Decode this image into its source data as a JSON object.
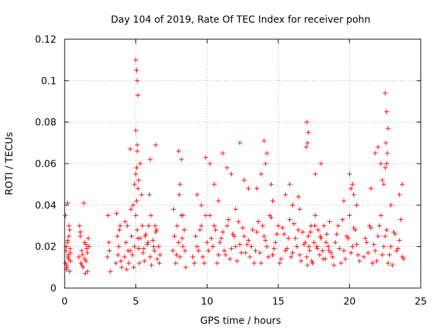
{
  "chart_data": {
    "type": "scatter",
    "title": "Day 104 of 2019, Rate Of TEC Index for receiver pohn",
    "xlabel": "GPS time / hours",
    "ylabel": "ROTI / TECUs",
    "xlim": [
      0,
      25
    ],
    "ylim": [
      0,
      0.12
    ],
    "grid": true,
    "marker": "plus",
    "marker_color": "#ff0000",
    "x_ticks": [
      0,
      5,
      10,
      15,
      20,
      25
    ],
    "x_tick_labels": [
      "0",
      "5",
      "10",
      "15",
      "20",
      "25"
    ],
    "y_ticks": [
      0,
      0.02,
      0.04,
      0.06,
      0.08,
      0.1,
      0.12
    ],
    "y_tick_labels": [
      "0",
      "0.02",
      "0.04",
      "0.06",
      "0.08",
      "0.1",
      "0.12"
    ],
    "series": [
      {
        "name": "ROTI",
        "x": [
          0.05,
          0.1,
          0.15,
          0.2,
          0.25,
          0.3,
          0.35,
          0.4,
          0.1,
          0.2,
          0.3,
          0.4,
          0.05,
          0.15,
          0.25,
          0.35,
          0.12,
          0.28,
          0.38,
          0.22,
          1.0,
          1.1,
          1.2,
          1.3,
          1.4,
          1.5,
          1.6,
          1.7,
          1.05,
          1.15,
          1.25,
          1.35,
          1.45,
          1.55,
          1.65,
          1.2,
          1.4,
          1.6,
          1.1,
          1.5,
          3.0,
          3.1,
          3.2,
          3.05,
          3.15,
          3.6,
          3.7,
          3.8,
          3.9,
          4.0,
          3.65,
          3.75,
          3.85,
          3.95,
          4.2,
          4.3,
          4.4,
          4.5,
          4.6,
          4.7,
          4.8,
          4.9,
          5.0,
          5.1,
          5.2,
          5.3,
          5.4,
          5.5,
          5.6,
          5.7,
          5.8,
          5.9,
          6.0,
          6.1,
          6.2,
          6.3,
          6.4,
          6.5,
          6.6,
          6.7,
          4.25,
          4.45,
          4.65,
          4.85,
          5.05,
          5.25,
          5.45,
          5.65,
          5.85,
          6.05,
          6.25,
          6.45,
          6.65,
          4.35,
          4.75,
          5.15,
          5.55,
          5.95,
          6.35,
          5.0,
          5.05,
          5.1,
          5.15,
          5.0,
          5.1,
          5.05,
          5.0,
          5.1,
          4.9,
          5.2,
          5.15,
          4.6,
          5.3,
          6.0,
          6.4,
          7.6,
          7.7,
          7.8,
          7.9,
          8.0,
          8.1,
          8.2,
          8.3,
          8.4,
          8.5,
          7.65,
          7.85,
          8.05,
          8.25,
          8.45,
          8.0,
          8.2,
          8.1,
          8.3,
          9.0,
          9.2,
          9.4,
          9.6,
          9.8,
          10.0,
          10.2,
          10.4,
          10.6,
          10.8,
          11.0,
          11.2,
          11.4,
          11.6,
          11.8,
          12.0,
          12.2,
          12.4,
          12.6,
          12.8,
          9.1,
          9.3,
          9.5,
          9.7,
          9.9,
          10.1,
          10.3,
          10.5,
          10.7,
          10.9,
          11.1,
          11.3,
          11.5,
          11.7,
          11.9,
          12.1,
          12.3,
          12.5,
          12.7,
          12.9,
          9.3,
          9.9,
          10.5,
          11.1,
          11.7,
          12.3,
          12.9,
          9.6,
          10.2,
          10.8,
          11.4,
          12.0,
          12.6,
          13.0,
          13.2,
          13.4,
          13.6,
          13.8,
          14.0,
          14.2,
          14.4,
          14.6,
          14.8,
          15.0,
          15.2,
          15.4,
          15.6,
          15.8,
          16.0,
          16.2,
          16.4,
          16.6,
          16.8,
          13.1,
          13.3,
          13.5,
          13.7,
          13.9,
          14.1,
          14.3,
          14.5,
          14.7,
          14.9,
          15.1,
          15.3,
          15.5,
          15.7,
          15.9,
          16.1,
          16.3,
          16.5,
          16.7,
          16.9,
          13.5,
          14.0,
          14.1,
          14.2,
          14.5,
          15.5,
          16.0,
          16.5,
          13.8,
          14.6,
          15.8,
          16.4,
          17.0,
          17.1,
          17.2,
          17.3,
          17.4,
          17.5,
          17.6,
          17.7,
          17.8,
          17.9,
          18.0,
          18.1,
          18.2,
          18.3,
          18.4,
          18.5,
          18.6,
          18.7,
          17.05,
          17.15,
          17.25,
          17.35,
          17.55,
          17.75,
          17.95,
          18.15,
          18.35,
          18.55,
          17.0,
          17.1,
          17.05,
          16.95,
          17.6,
          18.0,
          18.8,
          19.0,
          19.2,
          19.4,
          19.6,
          19.8,
          20.0,
          20.2,
          20.4,
          20.6,
          18.9,
          19.1,
          19.3,
          19.5,
          19.7,
          19.9,
          20.1,
          20.3,
          20.5,
          20.7,
          20.0,
          20.2,
          20.3,
          20.1,
          19.6,
          20.5,
          21.0,
          21.2,
          21.4,
          21.6,
          21.8,
          22.0,
          22.2,
          22.4,
          22.6,
          22.8,
          23.0,
          23.2,
          23.4,
          23.6,
          23.8,
          21.1,
          21.3,
          21.5,
          21.7,
          21.9,
          22.1,
          22.3,
          22.5,
          22.7,
          22.9,
          23.1,
          23.3,
          23.5,
          23.7,
          22.5,
          22.6,
          22.7,
          22.55,
          22.65,
          22.6,
          22.5,
          22.2,
          22.3,
          21.8,
          22.0,
          22.4,
          23.5,
          23.7,
          21.5,
          22.9
        ],
        "y": [
          0.012,
          0.018,
          0.01,
          0.022,
          0.015,
          0.03,
          0.008,
          0.013,
          0.02,
          0.041,
          0.025,
          0.017,
          0.035,
          0.011,
          0.016,
          0.028,
          0.009,
          0.014,
          0.019,
          0.023,
          0.015,
          0.025,
          0.018,
          0.01,
          0.022,
          0.013,
          0.008,
          0.02,
          0.03,
          0.012,
          0.016,
          0.041,
          0.007,
          0.019,
          0.024,
          0.011,
          0.014,
          0.017,
          0.027,
          0.021,
          0.015,
          0.022,
          0.008,
          0.035,
          0.018,
          0.012,
          0.025,
          0.02,
          0.03,
          0.01,
          0.036,
          0.016,
          0.028,
          0.013,
          0.015,
          0.022,
          0.03,
          0.012,
          0.018,
          0.025,
          0.04,
          0.02,
          0.035,
          0.028,
          0.019,
          0.024,
          0.045,
          0.017,
          0.013,
          0.026,
          0.021,
          0.03,
          0.015,
          0.011,
          0.023,
          0.018,
          0.027,
          0.014,
          0.02,
          0.016,
          0.032,
          0.018,
          0.038,
          0.01,
          0.042,
          0.012,
          0.03,
          0.025,
          0.022,
          0.035,
          0.02,
          0.028,
          0.012,
          0.009,
          0.016,
          0.024,
          0.019,
          0.045,
          0.03,
          0.11,
          0.105,
          0.1,
          0.093,
          0.076,
          0.069,
          0.058,
          0.055,
          0.066,
          0.05,
          0.052,
          0.048,
          0.067,
          0.06,
          0.062,
          0.069,
          0.018,
          0.025,
          0.012,
          0.03,
          0.022,
          0.015,
          0.035,
          0.02,
          0.028,
          0.01,
          0.038,
          0.016,
          0.045,
          0.024,
          0.018,
          0.066,
          0.062,
          0.05,
          0.035,
          0.015,
          0.025,
          0.018,
          0.03,
          0.012,
          0.022,
          0.035,
          0.02,
          0.028,
          0.016,
          0.024,
          0.018,
          0.03,
          0.014,
          0.026,
          0.02,
          0.032,
          0.017,
          0.025,
          0.021,
          0.012,
          0.02,
          0.028,
          0.015,
          0.035,
          0.018,
          0.024,
          0.03,
          0.012,
          0.022,
          0.027,
          0.016,
          0.033,
          0.019,
          0.025,
          0.013,
          0.021,
          0.029,
          0.017,
          0.023,
          0.045,
          0.063,
          0.05,
          0.065,
          0.055,
          0.07,
          0.048,
          0.04,
          0.06,
          0.042,
          0.058,
          0.038,
          0.052,
          0.015,
          0.028,
          0.018,
          0.032,
          0.012,
          0.025,
          0.02,
          0.035,
          0.016,
          0.022,
          0.03,
          0.014,
          0.026,
          0.019,
          0.033,
          0.017,
          0.024,
          0.028,
          0.013,
          0.021,
          0.02,
          0.012,
          0.027,
          0.017,
          0.03,
          0.023,
          0.015,
          0.034,
          0.019,
          0.026,
          0.012,
          0.029,
          0.018,
          0.024,
          0.015,
          0.031,
          0.02,
          0.016,
          0.027,
          0.022,
          0.048,
          0.071,
          0.06,
          0.065,
          0.05,
          0.045,
          0.04,
          0.038,
          0.055,
          0.042,
          0.05,
          0.044,
          0.015,
          0.025,
          0.018,
          0.03,
          0.012,
          0.022,
          0.035,
          0.02,
          0.028,
          0.016,
          0.024,
          0.018,
          0.03,
          0.014,
          0.026,
          0.02,
          0.032,
          0.017,
          0.011,
          0.02,
          0.027,
          0.013,
          0.03,
          0.019,
          0.025,
          0.014,
          0.022,
          0.018,
          0.08,
          0.075,
          0.07,
          0.068,
          0.055,
          0.06,
          0.015,
          0.022,
          0.03,
          0.012,
          0.018,
          0.025,
          0.035,
          0.02,
          0.028,
          0.016,
          0.011,
          0.026,
          0.019,
          0.033,
          0.014,
          0.024,
          0.017,
          0.029,
          0.021,
          0.013,
          0.055,
          0.05,
          0.045,
          0.048,
          0.042,
          0.04,
          0.015,
          0.022,
          0.03,
          0.012,
          0.018,
          0.025,
          0.035,
          0.02,
          0.028,
          0.016,
          0.011,
          0.026,
          0.019,
          0.033,
          0.014,
          0.024,
          0.017,
          0.029,
          0.021,
          0.013,
          0.03,
          0.016,
          0.025,
          0.012,
          0.02,
          0.027,
          0.018,
          0.023,
          0.015,
          0.094,
          0.085,
          0.077,
          0.07,
          0.065,
          0.06,
          0.058,
          0.06,
          0.052,
          0.065,
          0.068,
          0.05,
          0.045,
          0.05,
          0.048,
          0.04
        ]
      }
    ]
  }
}
